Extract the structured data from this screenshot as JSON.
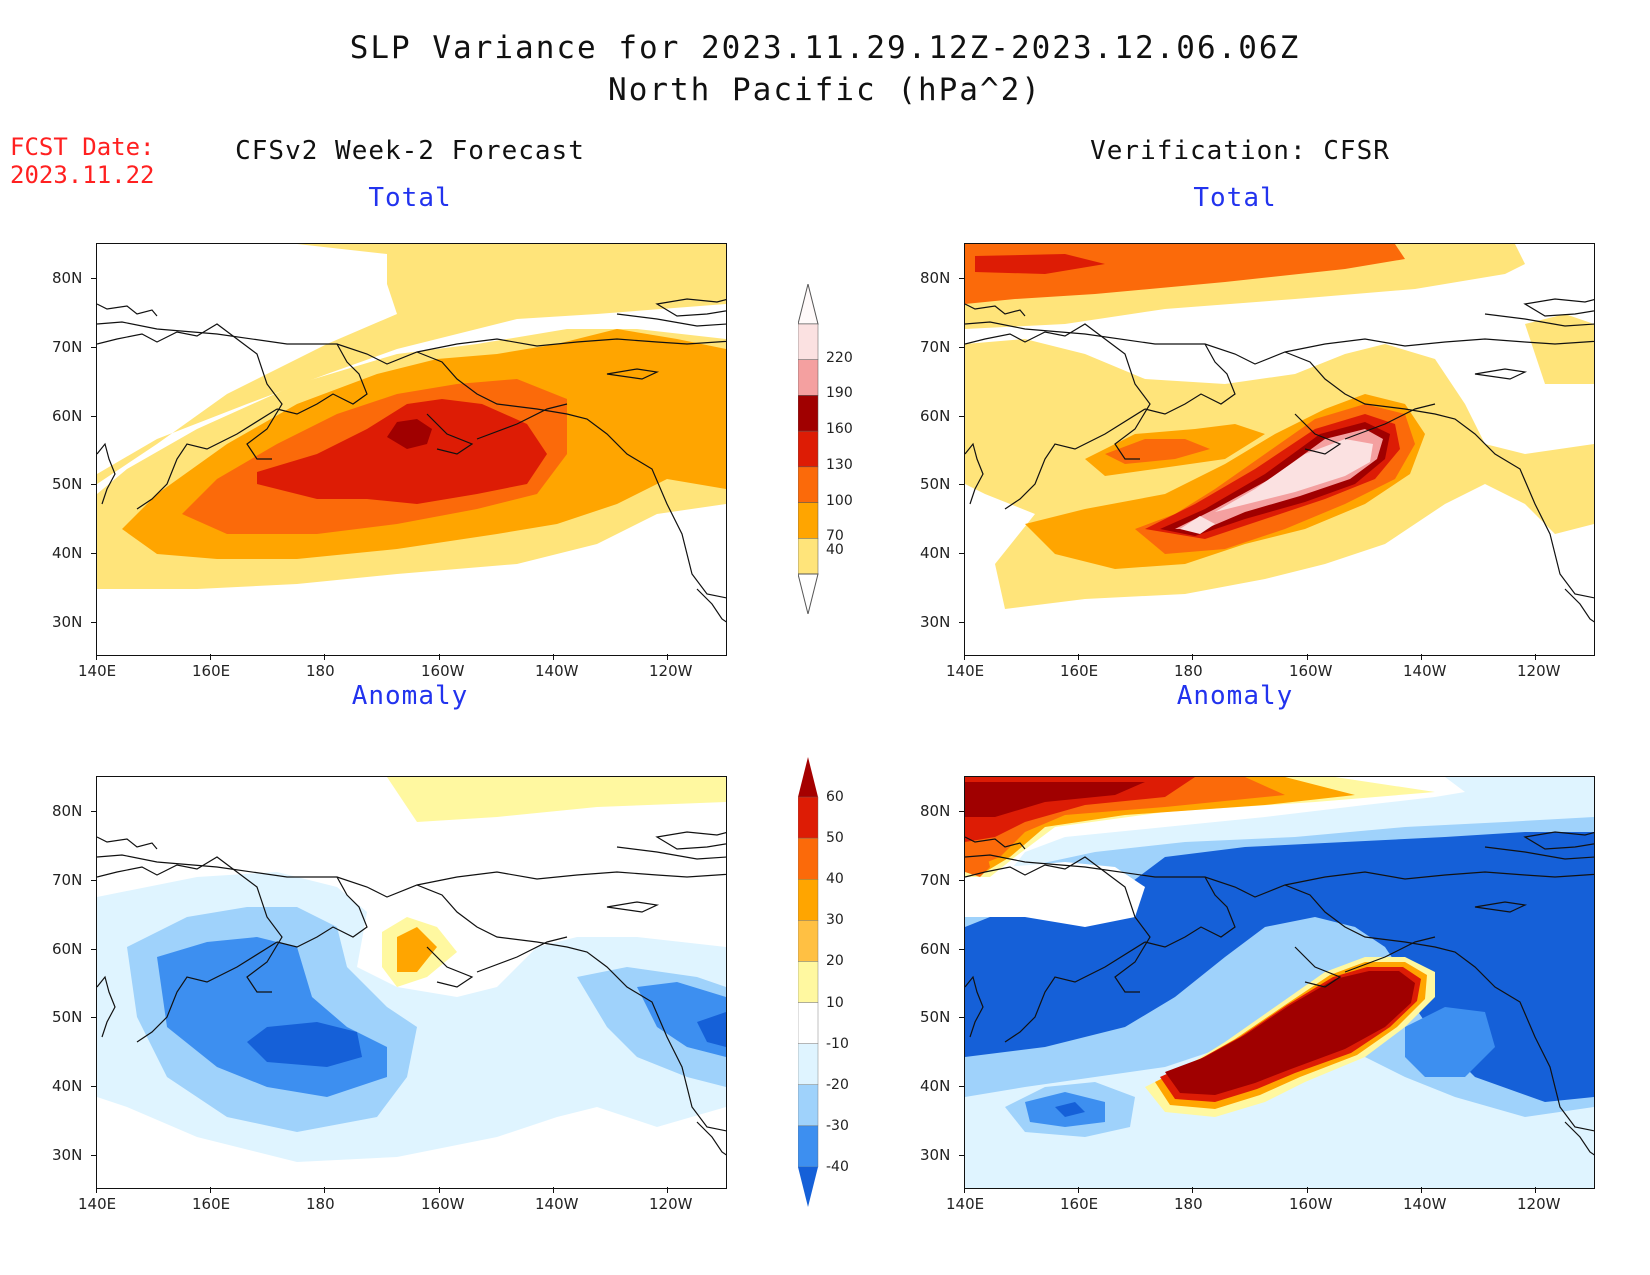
{
  "title": {
    "line1": "SLP Variance for 2023.11.29.12Z-2023.12.06.06Z",
    "line2": "North Pacific (hPa^2)"
  },
  "fcst_date": {
    "label": "FCST Date:",
    "value": "2023.11.22"
  },
  "columns": {
    "left": "CFSv2 Week-2 Forecast",
    "right": "Verification: CFSR"
  },
  "panel_titles": {
    "top_left": "Total",
    "top_right": "Total",
    "bottom_left": "Anomaly",
    "bottom_right": "Anomaly"
  },
  "axes": {
    "y_ticks": [
      "80N",
      "70N",
      "60N",
      "50N",
      "40N",
      "30N"
    ],
    "x_ticks": [
      "140E",
      "160E",
      "180",
      "160W",
      "140W",
      "120W"
    ]
  },
  "colorbars": {
    "total": {
      "labels": [
        "220",
        "190",
        "160",
        "130",
        "100",
        "70",
        "40"
      ],
      "colors": [
        "#fbe1e1",
        "#f4a0a0",
        "#a00000",
        "#dd1c05",
        "#fb6a0a",
        "#ffa500",
        "#ffe47a"
      ]
    },
    "anomaly": {
      "labels": [
        "60",
        "50",
        "40",
        "30",
        "20",
        "10",
        "-10",
        "-20",
        "-30",
        "-40"
      ],
      "colors": [
        "#a50000",
        "#dd1c05",
        "#fb6a0a",
        "#ffa500",
        "#ffc043",
        "#fff8a0",
        "#ffffff",
        "#dff4ff",
        "#9fd2fb",
        "#3d8ff0",
        "#1560d8"
      ]
    }
  }
}
